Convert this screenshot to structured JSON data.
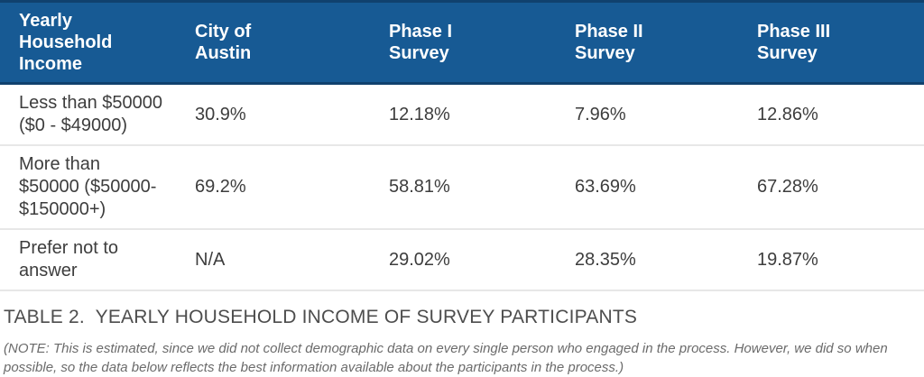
{
  "colors": {
    "header_bg": "#175a94",
    "header_border": "#10416e",
    "header_text": "#ffffff",
    "body_text": "#3d3d3d",
    "row_divider": "#e7e7e7",
    "caption_text": "#4d4d4d",
    "note_text": "#6b6b6b"
  },
  "table": {
    "headers": [
      "Yearly\nHousehold\nIncome",
      "City of\nAustin",
      "Phase I\nSurvey",
      "Phase II\nSurvey",
      "Phase III\nSurvey"
    ],
    "rows": [
      {
        "label": "Less than $50000\n($0 - $49000)",
        "values": [
          "30.9%",
          "12.18%",
          "7.96%",
          "12.86%"
        ]
      },
      {
        "label": "More than\n$50000 ($50000-\n$150000+)",
        "values": [
          "69.2%",
          "58.81%",
          "63.69%",
          "67.28%"
        ]
      },
      {
        "label": "Prefer not to\nanswer",
        "values": [
          "N/A",
          "29.02%",
          "28.35%",
          "19.87%"
        ]
      }
    ]
  },
  "caption": "TABLE 2.  YEARLY HOUSEHOLD INCOME OF SURVEY PARTICIPANTS",
  "note": "(NOTE: This is estimated, since we did not collect demographic data on every single person who engaged in the process. However, we did so when possible, so the data below reflects the best information available about the participants in the process.)"
}
